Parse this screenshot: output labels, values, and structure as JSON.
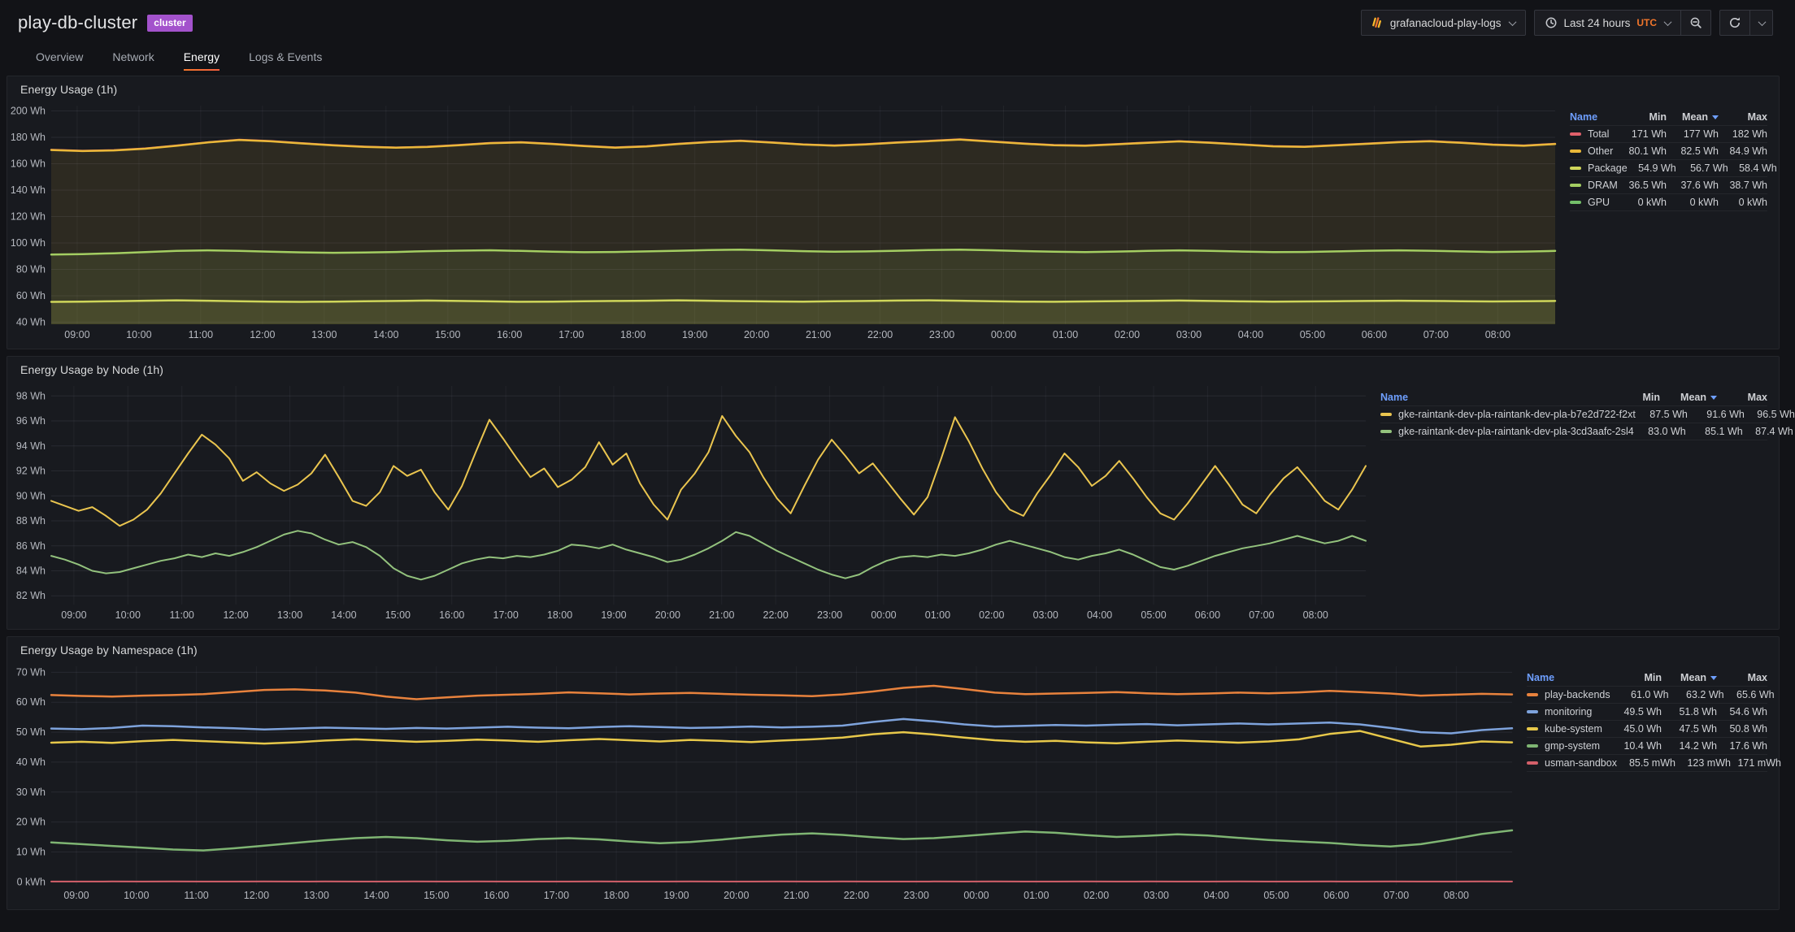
{
  "theme": {
    "accent_orange": "#F2762B",
    "badge_purple": "#A352CC",
    "legend_header_blue": "#6E9FFF",
    "panel_background": "#181A1F",
    "page_background": "#121317"
  },
  "header": {
    "title": "play-db-cluster",
    "badge": "cluster",
    "datasource": {
      "icon": "loki-icon",
      "label": "grafanacloud-play-logs"
    },
    "time": {
      "icon": "clock-icon",
      "label": "Last 24 hours",
      "timezone": "UTC"
    },
    "buttons": {
      "zoom_out_icon": "magnifier-minus-icon",
      "refresh_icon": "refresh-icon"
    }
  },
  "tabs": [
    {
      "label": "Overview",
      "active": false
    },
    {
      "label": "Network",
      "active": false
    },
    {
      "label": "Energy",
      "active": true
    },
    {
      "label": "Logs & Events",
      "active": false
    }
  ],
  "x_ticks": [
    "09:00",
    "10:00",
    "11:00",
    "12:00",
    "13:00",
    "14:00",
    "15:00",
    "16:00",
    "17:00",
    "18:00",
    "19:00",
    "20:00",
    "21:00",
    "22:00",
    "23:00",
    "00:00",
    "01:00",
    "02:00",
    "03:00",
    "04:00",
    "05:00",
    "06:00",
    "07:00",
    "08:00"
  ],
  "panels": [
    {
      "title": "Energy Usage (1h)",
      "type": "stacked-area",
      "y_min": 38.5,
      "y_max": 204,
      "y_ticks": [
        {
          "v": 200,
          "label": "200 Wh"
        },
        {
          "v": 180,
          "label": "180 Wh"
        },
        {
          "v": 160,
          "label": "160 Wh"
        },
        {
          "v": 140,
          "label": "140 Wh"
        },
        {
          "v": 120,
          "label": "120 Wh"
        },
        {
          "v": 100,
          "label": "100 Wh"
        },
        {
          "v": 80,
          "label": "80 Wh"
        },
        {
          "v": 60,
          "label": "60 Wh"
        },
        {
          "v": 40,
          "label": "40 Wh"
        }
      ],
      "legend": {
        "columns": [
          "Name",
          "Min",
          "Mean",
          "Max"
        ],
        "sort_column": "Mean",
        "rows": [
          {
            "name": "Total",
            "color": "#E0606B",
            "min": "171 Wh",
            "mean": "177 Wh",
            "max": "182 Wh"
          },
          {
            "name": "Other",
            "color": "#EAB839",
            "min": "80.1 Wh",
            "mean": "82.5 Wh",
            "max": "84.9 Wh"
          },
          {
            "name": "Package",
            "color": "#CFD65A",
            "min": "54.9 Wh",
            "mean": "56.7 Wh",
            "max": "58.4 Wh"
          },
          {
            "name": "DRAM",
            "color": "#A4CE62",
            "min": "36.5 Wh",
            "mean": "37.6 Wh",
            "max": "38.7 Wh"
          },
          {
            "name": "GPU",
            "color": "#73BF69",
            "min": "0 kWh",
            "mean": "0 kWh",
            "max": "0 kWh"
          }
        ]
      },
      "series": [
        {
          "name": "Total",
          "color": "#E0606B",
          "width": 2,
          "values": [
            170.7,
            169.9,
            170.4,
            171.7,
            173.9,
            176.4,
            178.3,
            177.3,
            175.7,
            174.2,
            173.1,
            172.4,
            173.0,
            174.3,
            175.9,
            176.5,
            175.2,
            173.7,
            172.5,
            173.4,
            175.2,
            176.7,
            177.6,
            176.3,
            174.8,
            174.0,
            174.9,
            176.3,
            177.4,
            178.6,
            177.1,
            175.5,
            174.3,
            173.9,
            175.0,
            176.2,
            177.2,
            176.1,
            174.8,
            173.5,
            173.1,
            174.2,
            175.4,
            176.6,
            177.3,
            176.1,
            174.7,
            173.9,
            175.2
          ]
        },
        {
          "name": "Other",
          "color": "#EAB839",
          "width": 2.5,
          "fill": "rgba(234,184,57,0.10)",
          "values": [
            170.4,
            169.6,
            170.1,
            171.4,
            173.6,
            176.1,
            178.0,
            177.0,
            175.4,
            173.9,
            172.8,
            172.1,
            172.7,
            174.0,
            175.6,
            176.2,
            174.9,
            173.4,
            172.2,
            173.1,
            174.9,
            176.4,
            177.3,
            176.0,
            174.5,
            173.7,
            174.6,
            176.0,
            177.1,
            178.3,
            176.8,
            175.2,
            174.0,
            173.6,
            174.7,
            175.9,
            176.9,
            175.8,
            174.5,
            173.2,
            172.8,
            173.9,
            175.1,
            176.3,
            177.0,
            175.8,
            174.4,
            173.6,
            174.9
          ]
        },
        {
          "name": "DRAM",
          "color": "#A4CE62",
          "width": 2.5,
          "fill": "rgba(164,206,98,0.10)",
          "values": [
            91.2,
            91.6,
            92.2,
            93.1,
            94.0,
            94.4,
            94.0,
            93.4,
            92.9,
            92.6,
            92.8,
            93.2,
            93.8,
            94.2,
            94.5,
            94.0,
            93.4,
            93.0,
            93.2,
            93.6,
            94.1,
            94.6,
            95.0,
            94.4,
            93.8,
            93.4,
            93.6,
            94.1,
            94.6,
            95.0,
            94.5,
            93.9,
            93.4,
            93.1,
            93.5,
            94.0,
            94.4,
            94.0,
            93.5,
            93.1,
            93.2,
            93.6,
            94.1,
            94.4,
            94.1,
            93.6,
            93.2,
            93.5,
            94.0
          ]
        },
        {
          "name": "Package",
          "color": "#CFD65A",
          "width": 2.5,
          "fill": "rgba(207,214,90,0.10)",
          "values": [
            55.4,
            55.6,
            55.9,
            56.3,
            56.6,
            56.3,
            55.9,
            55.6,
            55.4,
            55.6,
            55.9,
            56.1,
            56.4,
            56.1,
            55.8,
            55.5,
            55.6,
            55.9,
            56.1,
            56.3,
            56.6,
            56.3,
            56.0,
            55.7,
            55.6,
            55.9,
            56.1,
            56.4,
            56.6,
            56.3,
            55.9,
            55.6,
            55.5,
            55.7,
            56.0,
            56.2,
            56.4,
            56.1,
            55.8,
            55.6,
            55.7,
            55.9,
            56.1,
            56.3,
            56.1,
            55.9,
            55.7,
            55.9,
            56.1
          ]
        }
      ]
    },
    {
      "title": "Energy Usage by Node (1h)",
      "type": "line",
      "y_min": 81.3,
      "y_max": 98.8,
      "y_ticks": [
        {
          "v": 98,
          "label": "98 Wh"
        },
        {
          "v": 96,
          "label": "96 Wh"
        },
        {
          "v": 94,
          "label": "94 Wh"
        },
        {
          "v": 92,
          "label": "92 Wh"
        },
        {
          "v": 90,
          "label": "90 Wh"
        },
        {
          "v": 88,
          "label": "88 Wh"
        },
        {
          "v": 86,
          "label": "86 Wh"
        },
        {
          "v": 84,
          "label": "84 Wh"
        },
        {
          "v": 82,
          "label": "82 Wh"
        }
      ],
      "legend": {
        "columns": [
          "Name",
          "Min",
          "Mean",
          "Max"
        ],
        "sort_column": "Mean",
        "rows": [
          {
            "name": "gke-raintank-dev-pla-raintank-dev-pla-b7e2d722-f2xt",
            "color": "#EAC54F",
            "min": "87.5 Wh",
            "mean": "91.6 Wh",
            "max": "96.5 Wh"
          },
          {
            "name": "gke-raintank-dev-pla-raintank-dev-pla-3cd3aafc-2sl4",
            "color": "#93C27D",
            "min": "83.0 Wh",
            "mean": "85.1 Wh",
            "max": "87.4 Wh"
          }
        ]
      },
      "series": [
        {
          "name": "gke-raintank-dev-pla-raintank-dev-pla-b7e2d722-f2xt",
          "color": "#EAC54F",
          "width": 2,
          "values": [
            89.6,
            89.2,
            88.8,
            89.1,
            88.4,
            87.6,
            88.1,
            88.9,
            90.2,
            91.8,
            93.4,
            94.9,
            94.1,
            93.0,
            91.2,
            91.9,
            91.0,
            90.4,
            90.9,
            91.8,
            93.3,
            91.5,
            89.6,
            89.2,
            90.3,
            92.4,
            91.6,
            92.1,
            90.3,
            88.9,
            90.8,
            93.5,
            96.1,
            94.6,
            93.0,
            91.5,
            92.2,
            90.7,
            91.3,
            92.3,
            94.3,
            92.5,
            93.4,
            91.0,
            89.3,
            88.1,
            90.5,
            91.8,
            93.5,
            96.4,
            94.8,
            93.5,
            91.5,
            89.8,
            88.6,
            90.8,
            92.9,
            94.5,
            93.2,
            91.8,
            92.6,
            91.2,
            89.8,
            88.5,
            89.9,
            93.0,
            96.3,
            94.4,
            92.2,
            90.3,
            88.9,
            88.4,
            90.2,
            91.7,
            93.4,
            92.3,
            90.8,
            91.6,
            92.8,
            91.4,
            89.9,
            88.6,
            88.1,
            89.4,
            90.9,
            92.4,
            90.9,
            89.3,
            88.6,
            90.1,
            91.4,
            92.3,
            91.0,
            89.6,
            88.9,
            90.5,
            92.4
          ]
        },
        {
          "name": "gke-raintank-dev-pla-raintank-dev-pla-3cd3aafc-2sl4",
          "color": "#93C27D",
          "width": 2,
          "values": [
            85.2,
            84.9,
            84.5,
            84.0,
            83.8,
            83.9,
            84.2,
            84.5,
            84.8,
            85.0,
            85.3,
            85.1,
            85.4,
            85.2,
            85.5,
            85.9,
            86.4,
            86.9,
            87.2,
            87.0,
            86.5,
            86.1,
            86.3,
            85.9,
            85.2,
            84.2,
            83.6,
            83.3,
            83.6,
            84.1,
            84.6,
            84.9,
            85.1,
            85.0,
            85.2,
            85.1,
            85.3,
            85.6,
            86.1,
            86.0,
            85.8,
            86.1,
            85.7,
            85.4,
            85.1,
            84.7,
            84.9,
            85.3,
            85.8,
            86.4,
            87.1,
            86.8,
            86.2,
            85.6,
            85.1,
            84.6,
            84.1,
            83.7,
            83.4,
            83.7,
            84.3,
            84.8,
            85.1,
            85.2,
            85.1,
            85.3,
            85.2,
            85.4,
            85.7,
            86.1,
            86.4,
            86.1,
            85.8,
            85.5,
            85.1,
            84.9,
            85.2,
            85.4,
            85.7,
            85.3,
            84.8,
            84.3,
            84.1,
            84.4,
            84.8,
            85.2,
            85.5,
            85.8,
            86.0,
            86.2,
            86.5,
            86.8,
            86.5,
            86.2,
            86.4,
            86.8,
            86.4
          ]
        }
      ]
    },
    {
      "title": "Energy Usage by Namespace (1h)",
      "type": "line",
      "y_min": -1,
      "y_max": 72,
      "y_ticks": [
        {
          "v": 70,
          "label": "70 Wh"
        },
        {
          "v": 60,
          "label": "60 Wh"
        },
        {
          "v": 50,
          "label": "50 Wh"
        },
        {
          "v": 40,
          "label": "40 Wh"
        },
        {
          "v": 30,
          "label": "30 Wh"
        },
        {
          "v": 20,
          "label": "20 Wh"
        },
        {
          "v": 10,
          "label": "10 Wh"
        },
        {
          "v": 0,
          "label": "0 kWh"
        }
      ],
      "legend": {
        "columns": [
          "Name",
          "Min",
          "Mean",
          "Max"
        ],
        "sort_column": "Mean",
        "rows": [
          {
            "name": "play-backends",
            "color": "#E8823D",
            "min": "61.0 Wh",
            "mean": "63.2 Wh",
            "max": "65.6 Wh"
          },
          {
            "name": "monitoring",
            "color": "#7EA3DC",
            "min": "49.5 Wh",
            "mean": "51.8 Wh",
            "max": "54.6 Wh"
          },
          {
            "name": "kube-system",
            "color": "#E7C84A",
            "min": "45.0 Wh",
            "mean": "47.5 Wh",
            "max": "50.8 Wh"
          },
          {
            "name": "gmp-system",
            "color": "#7FB573",
            "min": "10.4 Wh",
            "mean": "14.2 Wh",
            "max": "17.6 Wh"
          },
          {
            "name": "usman-sandbox",
            "color": "#D4606A",
            "min": "85.5 mWh",
            "mean": "123 mWh",
            "max": "171 mWh"
          }
        ]
      },
      "series": [
        {
          "name": "play-backends",
          "color": "#E8823D",
          "width": 2.5,
          "values": [
            62.4,
            62.1,
            61.9,
            62.2,
            62.4,
            62.7,
            63.4,
            64.1,
            64.3,
            63.9,
            63.2,
            61.9,
            61.0,
            61.6,
            62.2,
            62.5,
            62.8,
            63.3,
            63.0,
            62.6,
            62.9,
            63.1,
            62.8,
            62.5,
            62.3,
            62.0,
            62.6,
            63.6,
            64.8,
            65.5,
            64.4,
            63.2,
            62.7,
            62.9,
            63.1,
            63.4,
            63.0,
            62.7,
            62.9,
            63.2,
            63.0,
            63.3,
            63.8,
            63.4,
            62.9,
            62.2,
            62.5,
            62.8,
            62.6
          ]
        },
        {
          "name": "monitoring",
          "color": "#7EA3DC",
          "width": 2.5,
          "values": [
            51.2,
            51.0,
            51.4,
            52.2,
            52.0,
            51.6,
            51.3,
            50.9,
            51.2,
            51.5,
            51.3,
            51.1,
            51.4,
            51.2,
            51.5,
            51.8,
            51.5,
            51.3,
            51.7,
            52.0,
            51.7,
            51.4,
            51.6,
            51.9,
            51.6,
            51.8,
            52.2,
            53.4,
            54.4,
            53.6,
            52.6,
            51.9,
            52.1,
            52.4,
            52.2,
            52.5,
            52.7,
            52.3,
            52.6,
            52.9,
            52.6,
            52.9,
            53.2,
            52.6,
            51.4,
            50.0,
            49.6,
            50.7,
            51.3
          ]
        },
        {
          "name": "kube-system",
          "color": "#E7C84A",
          "width": 2.5,
          "values": [
            46.5,
            46.8,
            46.4,
            47.0,
            47.4,
            47.0,
            46.6,
            46.2,
            46.6,
            47.2,
            47.6,
            47.2,
            46.8,
            47.1,
            47.5,
            47.2,
            46.8,
            47.3,
            47.7,
            47.3,
            46.9,
            47.4,
            47.1,
            46.7,
            47.2,
            47.6,
            48.2,
            49.3,
            50.0,
            49.2,
            48.2,
            47.3,
            46.8,
            47.1,
            46.6,
            46.3,
            46.8,
            47.2,
            46.9,
            46.5,
            46.9,
            47.6,
            49.4,
            50.4,
            47.8,
            45.2,
            45.8,
            46.9,
            46.6
          ]
        },
        {
          "name": "gmp-system",
          "color": "#7FB573",
          "width": 2.5,
          "values": [
            13.2,
            12.6,
            12.0,
            11.4,
            10.8,
            10.5,
            11.2,
            12.1,
            13.0,
            13.9,
            14.6,
            15.0,
            14.6,
            13.9,
            13.4,
            13.7,
            14.3,
            14.6,
            14.2,
            13.5,
            12.9,
            13.3,
            14.1,
            15.0,
            15.8,
            16.2,
            15.7,
            14.9,
            14.3,
            14.6,
            15.3,
            16.1,
            16.8,
            16.4,
            15.6,
            15.0,
            15.4,
            15.9,
            15.5,
            14.7,
            14.0,
            13.5,
            13.0,
            12.3,
            11.8,
            12.6,
            14.2,
            16.0,
            17.2
          ]
        },
        {
          "name": "usman-sandbox",
          "color": "#D4606A",
          "width": 2,
          "values": [
            0.12,
            0.1,
            0.13,
            0.11,
            0.14,
            0.1,
            0.12,
            0.15,
            0.11,
            0.13,
            0.1,
            0.12,
            0.14,
            0.11,
            0.13,
            0.1,
            0.12,
            0.11,
            0.14,
            0.12,
            0.1,
            0.13,
            0.11,
            0.12,
            0.14,
            0.11,
            0.13,
            0.1,
            0.12,
            0.14,
            0.11,
            0.13,
            0.12,
            0.1,
            0.13,
            0.11,
            0.14,
            0.12,
            0.1,
            0.13,
            0.11,
            0.12,
            0.14,
            0.11,
            0.13,
            0.1,
            0.12,
            0.13,
            0.11
          ]
        }
      ]
    }
  ]
}
